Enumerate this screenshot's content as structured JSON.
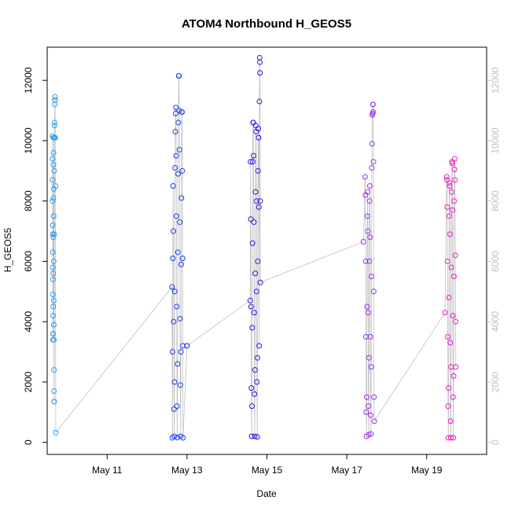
{
  "chart_data": {
    "type": "scatter",
    "title": "ATOM4 Northbound H_GEOS5",
    "xlabel": "Date",
    "ylabel": "H_GEOS5",
    "xlim": [
      "2016-05-09T12:00",
      "2016-05-20T12:00"
    ],
    "ylim": [
      -400,
      13100
    ],
    "x_ticks": [
      {
        "label": "May 11",
        "x": "2016-05-11"
      },
      {
        "label": "May 13",
        "x": "2016-05-13"
      },
      {
        "label": "May 15",
        "x": "2016-05-15"
      },
      {
        "label": "May 17",
        "x": "2016-05-17"
      },
      {
        "label": "May 19",
        "x": "2016-05-19"
      }
    ],
    "y_ticks": [
      0,
      2000,
      4000,
      6000,
      8000,
      10000,
      12000
    ],
    "right_axis_ticks": [
      0,
      2000,
      4000,
      6000,
      8000,
      10000,
      12000
    ],
    "connecting_line_color": "#c0c0c0",
    "point_style": "open-circle",
    "colors": {
      "flight1": "#2a9df4",
      "flight2": "#1a3fe8",
      "flight3": "#3a10e0",
      "flight4": "#9a30e8",
      "flight5": "#f018c8"
    },
    "series": [
      {
        "color": "#2a9df4",
        "points": [
          [
            "2016-05-09T15:10",
            10150
          ],
          [
            "2016-05-09T15:12",
            9400
          ],
          [
            "2016-05-09T15:14",
            8700
          ],
          [
            "2016-05-09T15:16",
            8000
          ],
          [
            "2016-05-09T15:18",
            7200
          ],
          [
            "2016-05-09T15:20",
            6900
          ],
          [
            "2016-05-09T15:22",
            6300
          ],
          [
            "2016-05-09T15:24",
            5800
          ],
          [
            "2016-05-09T15:26",
            5400
          ],
          [
            "2016-05-09T15:28",
            4900
          ],
          [
            "2016-05-09T15:30",
            4200
          ],
          [
            "2016-05-09T15:32",
            3600
          ],
          [
            "2016-05-09T15:34",
            3400
          ],
          [
            "2016-05-09T15:36",
            3600
          ],
          [
            "2016-05-09T15:38",
            4500
          ],
          [
            "2016-05-09T15:40",
            5600
          ],
          [
            "2016-05-09T15:42",
            6800
          ],
          [
            "2016-05-09T15:44",
            8100
          ],
          [
            "2016-05-09T15:46",
            9200
          ],
          [
            "2016-05-09T15:48",
            10100
          ],
          [
            "2016-05-09T15:50",
            9600
          ],
          [
            "2016-05-09T15:52",
            8400
          ],
          [
            "2016-05-09T15:54",
            7500
          ],
          [
            "2016-05-09T15:56",
            6000
          ],
          [
            "2016-05-09T15:58",
            4700
          ],
          [
            "2016-05-09T16:00",
            3900
          ],
          [
            "2016-05-09T16:02",
            3400
          ],
          [
            "2016-05-09T16:04",
            2400
          ],
          [
            "2016-05-09T16:06",
            1700
          ],
          [
            "2016-05-09T16:08",
            1350
          ],
          [
            "2016-05-09T16:10",
            1350
          ],
          [
            "2016-05-09T16:14",
            6900
          ],
          [
            "2016-05-09T16:18",
            9000
          ],
          [
            "2016-05-09T16:22",
            10100
          ],
          [
            "2016-05-09T16:26",
            10500
          ],
          [
            "2016-05-09T16:30",
            10600
          ],
          [
            "2016-05-09T16:34",
            11200
          ],
          [
            "2016-05-09T16:38",
            11350
          ],
          [
            "2016-05-09T16:42",
            11450
          ],
          [
            "2016-05-09T16:46",
            11350
          ],
          [
            "2016-05-09T16:50",
            10100
          ],
          [
            "2016-05-09T16:56",
            8500
          ],
          [
            "2016-05-09T17:10",
            320
          ]
        ]
      },
      {
        "color": "#1a3fe8",
        "points": [
          [
            "2016-05-12T15:00",
            5150
          ],
          [
            "2016-05-12T15:10",
            150
          ],
          [
            "2016-05-12T15:20",
            3000
          ],
          [
            "2016-05-12T15:30",
            6100
          ],
          [
            "2016-05-12T15:40",
            8500
          ],
          [
            "2016-05-12T15:50",
            7000
          ],
          [
            "2016-05-12T16:00",
            4000
          ],
          [
            "2016-05-12T16:10",
            1100
          ],
          [
            "2016-05-12T16:20",
            200
          ],
          [
            "2016-05-12T16:30",
            2000
          ],
          [
            "2016-05-12T16:40",
            5000
          ],
          [
            "2016-05-12T16:50",
            9100
          ],
          [
            "2016-05-12T17:00",
            10300
          ],
          [
            "2016-05-12T17:10",
            10900
          ],
          [
            "2016-05-12T17:20",
            11100
          ],
          [
            "2016-05-12T17:30",
            9500
          ],
          [
            "2016-05-12T17:40",
            7500
          ],
          [
            "2016-05-12T17:50",
            4500
          ],
          [
            "2016-05-12T18:00",
            1200
          ],
          [
            "2016-05-12T18:10",
            160
          ],
          [
            "2016-05-12T18:20",
            2600
          ],
          [
            "2016-05-12T18:30",
            6300
          ],
          [
            "2016-05-12T18:40",
            8900
          ],
          [
            "2016-05-12T18:50",
            10600
          ],
          [
            "2016-05-12T19:00",
            12150
          ],
          [
            "2016-05-12T19:10",
            12150
          ],
          [
            "2016-05-12T19:20",
            11000
          ],
          [
            "2016-05-12T19:30",
            9700
          ],
          [
            "2016-05-12T19:40",
            7300
          ],
          [
            "2016-05-12T19:50",
            4100
          ],
          [
            "2016-05-12T20:00",
            1900
          ],
          [
            "2016-05-12T20:10",
            200
          ],
          [
            "2016-05-12T20:20",
            3000
          ],
          [
            "2016-05-12T20:30",
            5900
          ],
          [
            "2016-05-12T20:40",
            8100
          ],
          [
            "2016-05-12T20:50",
            10950
          ],
          [
            "2016-05-12T21:00",
            10950
          ],
          [
            "2016-05-12T21:10",
            9000
          ],
          [
            "2016-05-12T21:20",
            6100
          ],
          [
            "2016-05-12T21:30",
            3200
          ],
          [
            "2016-05-12T21:35",
            150
          ]
        ]
      },
      {
        "color": "#3a10e0",
        "points": [
          [
            "2016-05-13T00:00",
            3200
          ],
          [
            "2016-05-14T14:00",
            4700
          ],
          [
            "2016-05-14T14:10",
            9300
          ],
          [
            "2016-05-14T14:20",
            7400
          ],
          [
            "2016-05-14T14:30",
            4500
          ],
          [
            "2016-05-14T14:40",
            1800
          ],
          [
            "2016-05-14T14:50",
            200
          ],
          [
            "2016-05-14T15:00",
            1200
          ],
          [
            "2016-05-14T15:10",
            3800
          ],
          [
            "2016-05-14T15:20",
            6600
          ],
          [
            "2016-05-14T15:30",
            9300
          ],
          [
            "2016-05-14T15:40",
            10600
          ],
          [
            "2016-05-14T15:50",
            10600
          ],
          [
            "2016-05-14T16:00",
            9500
          ],
          [
            "2016-05-14T16:10",
            7300
          ],
          [
            "2016-05-14T16:20",
            4300
          ],
          [
            "2016-05-14T16:30",
            1600
          ],
          [
            "2016-05-14T16:40",
            200
          ],
          [
            "2016-05-14T16:50",
            2400
          ],
          [
            "2016-05-14T17:00",
            5600
          ],
          [
            "2016-05-14T17:10",
            8300
          ],
          [
            "2016-05-14T17:20",
            10500
          ],
          [
            "2016-05-14T17:30",
            10300
          ],
          [
            "2016-05-14T17:40",
            8000
          ],
          [
            "2016-05-14T17:50",
            5000
          ],
          [
            "2016-05-14T18:00",
            2000
          ],
          [
            "2016-05-14T18:10",
            180
          ],
          [
            "2016-05-14T18:20",
            2800
          ],
          [
            "2016-05-14T18:30",
            6000
          ],
          [
            "2016-05-14T18:40",
            9000
          ],
          [
            "2016-05-14T18:50",
            10400
          ],
          [
            "2016-05-14T19:00",
            10100
          ],
          [
            "2016-05-14T19:10",
            7800
          ],
          [
            "2016-05-14T19:20",
            3200
          ],
          [
            "2016-05-14T19:30",
            11300
          ],
          [
            "2016-05-14T19:40",
            12750
          ],
          [
            "2016-05-14T19:45",
            12600
          ],
          [
            "2016-05-14T19:50",
            12250
          ],
          [
            "2016-05-14T20:00",
            8000
          ],
          [
            "2016-05-14T20:05",
            5300
          ]
        ]
      },
      {
        "color": "#9a30e8",
        "points": [
          [
            "2016-05-17T10:00",
            6650
          ],
          [
            "2016-05-17T11:00",
            8800
          ],
          [
            "2016-05-17T11:10",
            8200
          ],
          [
            "2016-05-17T11:20",
            6000
          ],
          [
            "2016-05-17T11:30",
            3500
          ],
          [
            "2016-05-17T11:40",
            1000
          ],
          [
            "2016-05-17T11:50",
            200
          ],
          [
            "2016-05-17T12:00",
            1500
          ],
          [
            "2016-05-17T12:10",
            4500
          ],
          [
            "2016-05-17T12:20",
            7500
          ],
          [
            "2016-05-17T12:30",
            8300
          ],
          [
            "2016-05-17T12:40",
            7000
          ],
          [
            "2016-05-17T12:50",
            4300
          ],
          [
            "2016-05-17T13:00",
            1200
          ],
          [
            "2016-05-17T13:10",
            250
          ],
          [
            "2016-05-17T13:20",
            2800
          ],
          [
            "2016-05-17T13:30",
            6000
          ],
          [
            "2016-05-17T13:40",
            8000
          ],
          [
            "2016-05-17T13:50",
            8500
          ],
          [
            "2016-05-17T14:00",
            6800
          ],
          [
            "2016-05-17T14:10",
            3500
          ],
          [
            "2016-05-17T14:20",
            900
          ],
          [
            "2016-05-17T14:30",
            280
          ],
          [
            "2016-05-17T14:40",
            2500
          ],
          [
            "2016-05-17T14:50",
            5500
          ],
          [
            "2016-05-17T15:00",
            9100
          ],
          [
            "2016-05-17T15:10",
            9900
          ],
          [
            "2016-05-17T15:20",
            10850
          ],
          [
            "2016-05-17T15:30",
            10900
          ],
          [
            "2016-05-17T15:40",
            11200
          ],
          [
            "2016-05-17T15:45",
            11200
          ],
          [
            "2016-05-17T15:50",
            10950
          ],
          [
            "2016-05-17T16:00",
            9300
          ],
          [
            "2016-05-17T16:10",
            5000
          ],
          [
            "2016-05-17T16:20",
            1500
          ],
          [
            "2016-05-17T16:30",
            700
          ]
        ]
      },
      {
        "color": "#f018c8",
        "points": [
          [
            "2016-05-19T11:00",
            4300
          ],
          [
            "2016-05-19T12:00",
            8800
          ],
          [
            "2016-05-19T12:10",
            8700
          ],
          [
            "2016-05-19T12:20",
            7800
          ],
          [
            "2016-05-19T12:30",
            6000
          ],
          [
            "2016-05-19T12:40",
            3500
          ],
          [
            "2016-05-19T12:50",
            1200
          ],
          [
            "2016-05-19T13:00",
            150
          ],
          [
            "2016-05-19T13:10",
            1800
          ],
          [
            "2016-05-19T13:20",
            4800
          ],
          [
            "2016-05-19T13:30",
            7500
          ],
          [
            "2016-05-19T13:40",
            8600
          ],
          [
            "2016-05-19T13:50",
            8500
          ],
          [
            "2016-05-19T14:00",
            6900
          ],
          [
            "2016-05-19T14:10",
            3300
          ],
          [
            "2016-05-19T14:20",
            700
          ],
          [
            "2016-05-19T14:30",
            150
          ],
          [
            "2016-05-19T14:40",
            2500
          ],
          [
            "2016-05-19T14:50",
            5800
          ],
          [
            "2016-05-19T15:00",
            8300
          ],
          [
            "2016-05-19T15:10",
            9300
          ],
          [
            "2016-05-19T15:20",
            9250
          ],
          [
            "2016-05-19T15:30",
            7700
          ],
          [
            "2016-05-19T15:40",
            4200
          ],
          [
            "2016-05-19T15:50",
            1500
          ],
          [
            "2016-05-19T16:00",
            150
          ],
          [
            "2016-05-19T16:10",
            2200
          ],
          [
            "2016-05-19T16:20",
            5500
          ],
          [
            "2016-05-19T16:30",
            8000
          ],
          [
            "2016-05-19T16:40",
            9050
          ],
          [
            "2016-05-19T16:50",
            9400
          ],
          [
            "2016-05-19T17:00",
            8700
          ],
          [
            "2016-05-19T17:10",
            6200
          ],
          [
            "2016-05-19T17:20",
            4000
          ],
          [
            "2016-05-19T17:30",
            2500
          ]
        ]
      }
    ]
  }
}
